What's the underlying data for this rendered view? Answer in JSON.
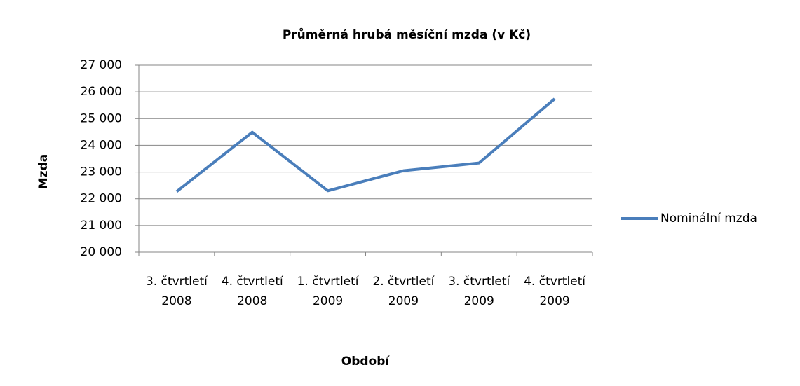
{
  "chart_data": {
    "type": "line",
    "title": "Průměrná hrubá měsíční mzda (v Kč)",
    "x_label": "Období",
    "y_label": "Mzda",
    "categories": [
      "3. čtvrtletí 2008",
      "4. čtvrtletí 2008",
      "1. čtvrtletí 2009",
      "2. čtvrtletí 2009",
      "3. čtvrtletí 2009",
      "4. čtvrtletí 2009"
    ],
    "series": [
      {
        "name": "Nominální mzda",
        "color": "#4a7ebb",
        "values": [
          22270,
          24490,
          22300,
          23050,
          23340,
          25740
        ]
      }
    ],
    "ylim": [
      20000,
      27000
    ],
    "yticks": [
      {
        "value": 20000,
        "label": "20 000"
      },
      {
        "value": 21000,
        "label": "21 000"
      },
      {
        "value": 22000,
        "label": "22 000"
      },
      {
        "value": 23000,
        "label": "23 000"
      },
      {
        "value": 24000,
        "label": "24 000"
      },
      {
        "value": 25000,
        "label": "25 000"
      },
      {
        "value": 26000,
        "label": "26 000"
      },
      {
        "value": 27000,
        "label": "27 000"
      }
    ],
    "grid": true,
    "legend": "right"
  }
}
